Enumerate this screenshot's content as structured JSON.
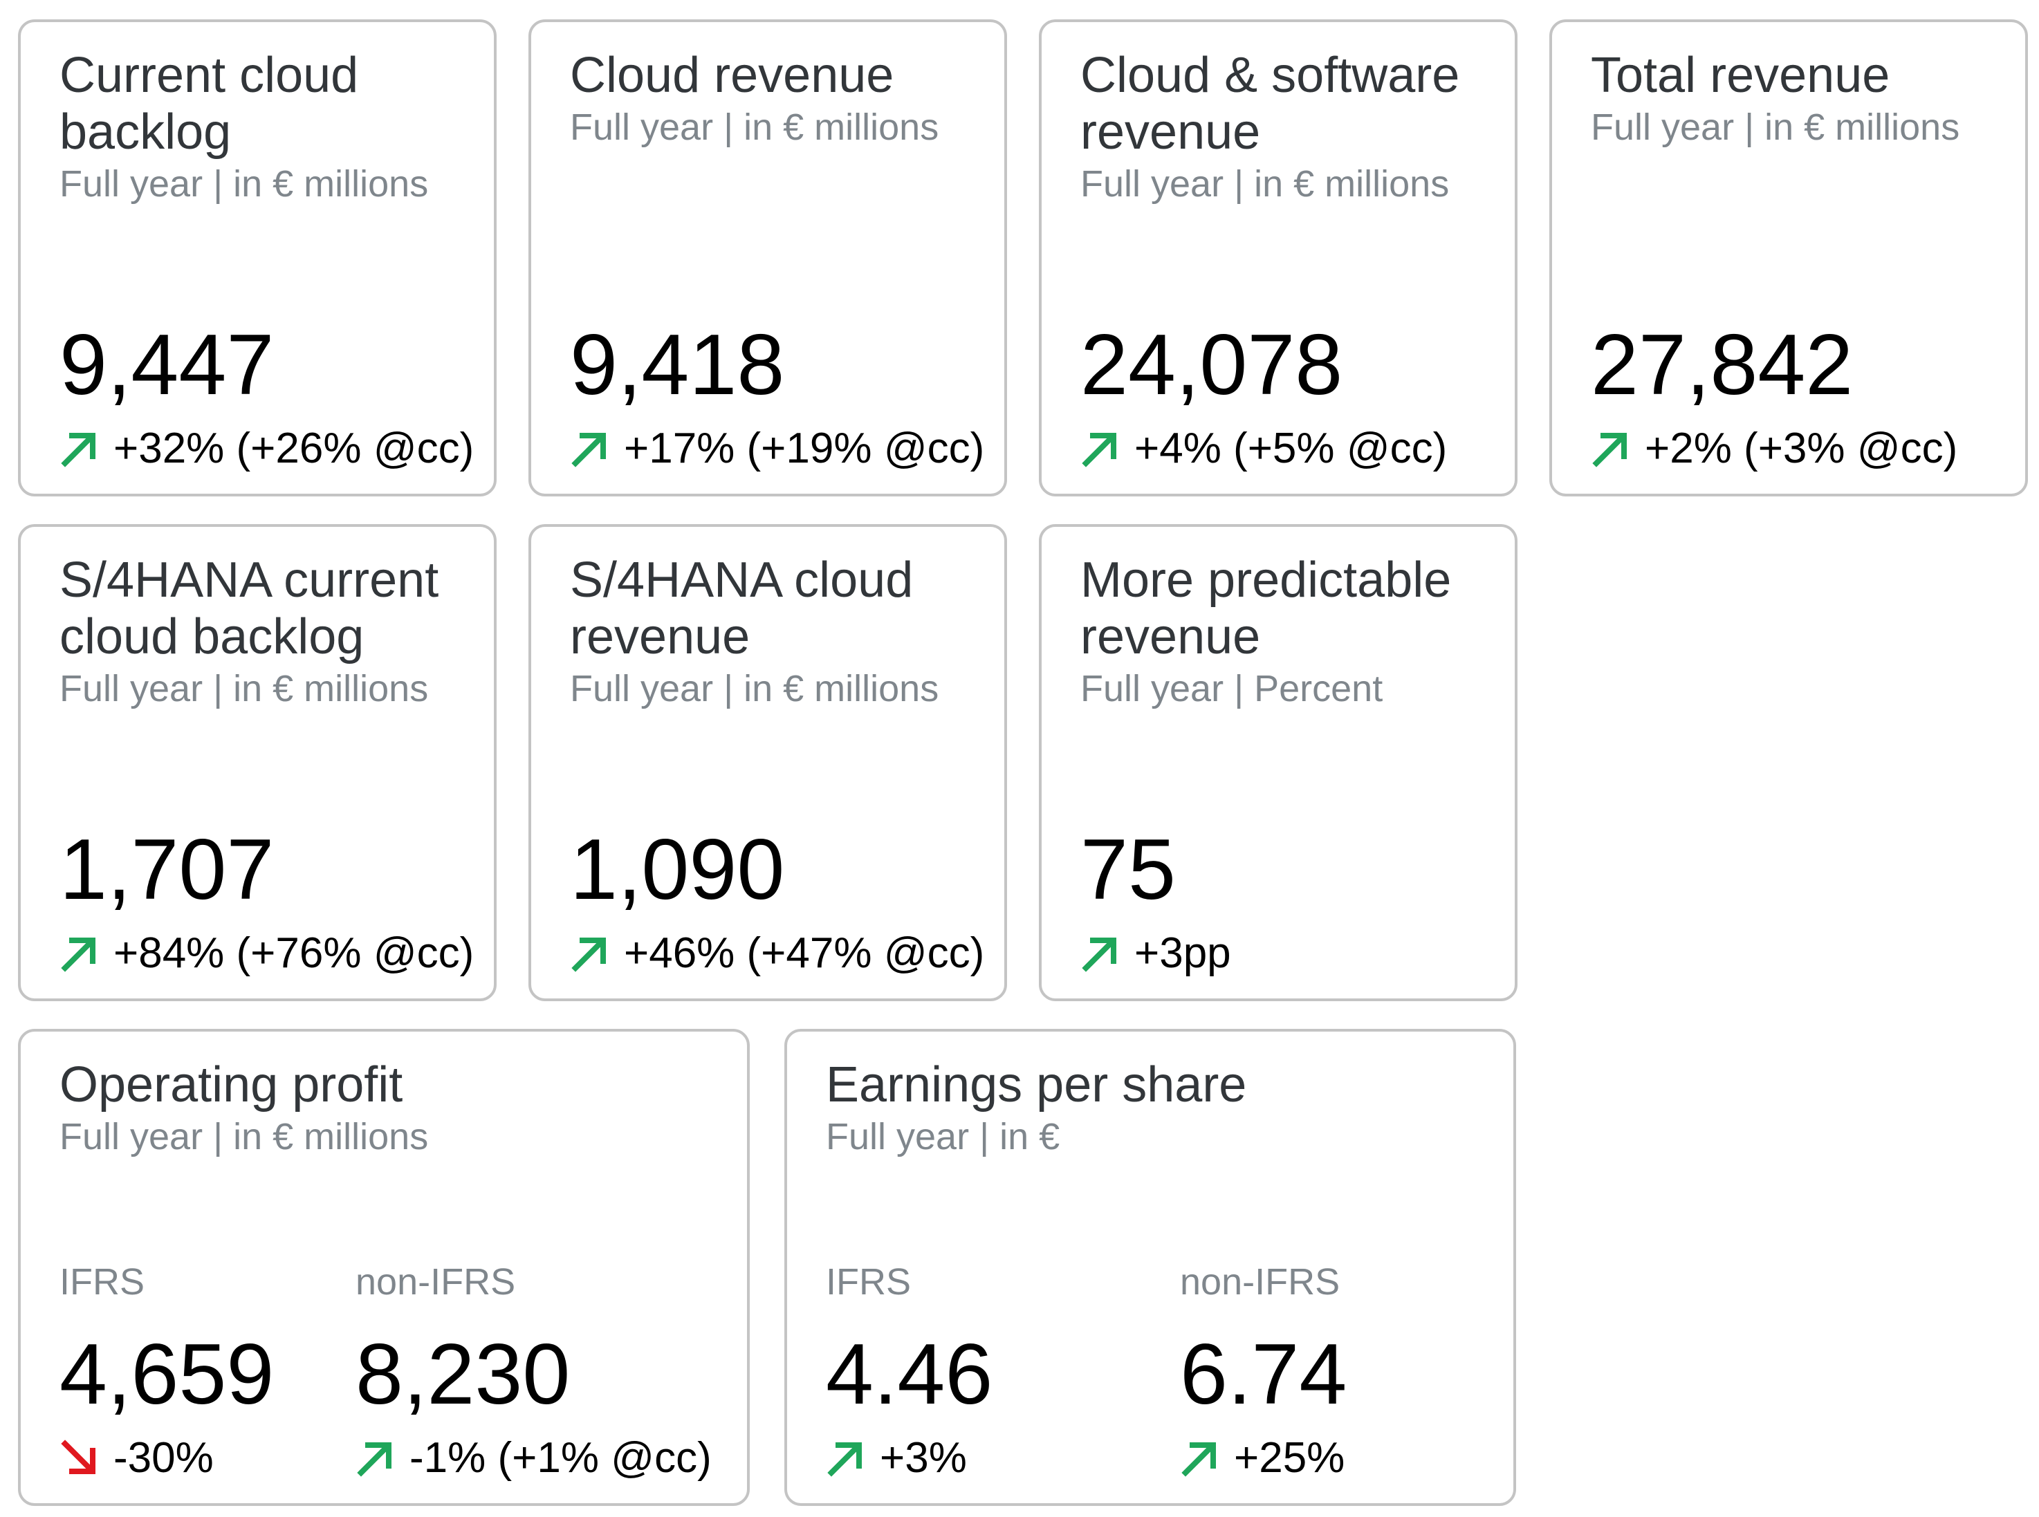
{
  "colors": {
    "positive": "#1fa65a",
    "negative": "#e0181f",
    "title": "#32363a",
    "subtitle": "#7f868c",
    "border": "#c4c4c4"
  },
  "tiles": {
    "ccb": {
      "title": "Current cloud backlog",
      "subtitle": "Full year | in € millions",
      "value": "9,447",
      "delta": "+32% (+26% @cc)",
      "trend": "up"
    },
    "cloud_rev": {
      "title": "Cloud revenue",
      "subtitle": "Full year | in € millions",
      "value": "9,418",
      "delta": "+17% (+19% @cc)",
      "trend": "up"
    },
    "cloud_sw_rev": {
      "title": "Cloud & software revenue",
      "subtitle": "Full year | in € millions",
      "value": "24,078",
      "delta": "+4% (+5% @cc)",
      "trend": "up"
    },
    "total_rev": {
      "title": "Total revenue",
      "subtitle": "Full year | in € millions",
      "value": "27,842",
      "delta": "+2% (+3% @cc)",
      "trend": "up"
    },
    "s4_ccb": {
      "title": "S/4HANA current cloud backlog",
      "subtitle": "Full year | in € millions",
      "value": "1,707",
      "delta": "+84% (+76% @cc)",
      "trend": "up"
    },
    "s4_cloud_rev": {
      "title": "S/4HANA cloud revenue",
      "subtitle": "Full year | in € millions",
      "value": "1,090",
      "delta": "+46% (+47% @cc)",
      "trend": "up"
    },
    "predictable_rev": {
      "title": "More predictable revenue",
      "subtitle": "Full year | Percent",
      "value": "75",
      "delta": "+3pp",
      "trend": "up"
    },
    "op_profit": {
      "title": "Operating profit",
      "subtitle": "Full year | in € millions",
      "ifrs": {
        "label": "IFRS",
        "value": "4,659",
        "delta": "-30%",
        "trend": "down"
      },
      "non_ifrs": {
        "label": "non-IFRS",
        "value": "8,230",
        "delta": "-1% (+1% @cc)",
        "trend": "up"
      }
    },
    "eps": {
      "title": "Earnings per share",
      "subtitle": "Full year | in €",
      "ifrs": {
        "label": "IFRS",
        "value": "4.46",
        "delta": "+3%",
        "trend": "up"
      },
      "non_ifrs": {
        "label": "non-IFRS",
        "value": "6.74",
        "delta": "+25%",
        "trend": "up"
      }
    }
  }
}
